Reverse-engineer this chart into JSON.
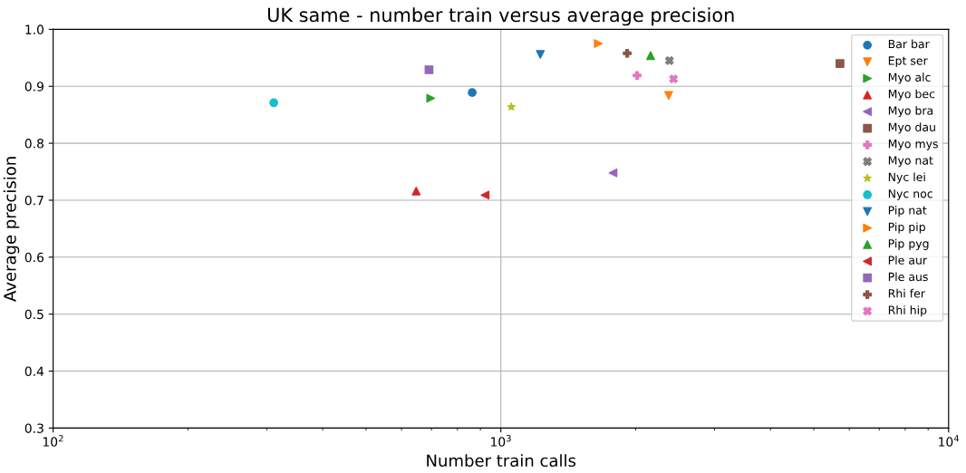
{
  "chart_data": {
    "type": "scatter",
    "title": "UK same - number train versus average precision",
    "xlabel": "Number train calls",
    "ylabel": "Average precision",
    "log": "x",
    "xlim": [
      100,
      10000
    ],
    "xticks": [
      {
        "value": 100,
        "label": "10$^{2}$"
      },
      {
        "value": 1000,
        "label": "10$^{3}$"
      },
      {
        "value": 10000,
        "label": "10$^{4}$"
      }
    ],
    "ylim": [
      0.3,
      1.0
    ],
    "yticks": [
      {
        "value": 0.3,
        "label": "0.3"
      },
      {
        "value": 0.4,
        "label": "0.4"
      },
      {
        "value": 0.5,
        "label": "0.5"
      },
      {
        "value": 0.6,
        "label": "0.6"
      },
      {
        "value": 0.7,
        "label": "0.7"
      },
      {
        "value": 0.8,
        "label": "0.8"
      },
      {
        "value": 0.9,
        "label": "0.9"
      },
      {
        "value": 1.0,
        "label": "1.0"
      }
    ],
    "grid": true,
    "legend": "top right",
    "series": [
      {
        "name": "Bar bar",
        "color": "#1f77b4",
        "marker": "circle",
        "x": [
          863
        ],
        "values": [
          0.889
        ]
      },
      {
        "name": "Ept ser",
        "color": "#ff7f0e",
        "marker": "triangle_down",
        "x": [
          2370
        ],
        "values": [
          0.884
        ]
      },
      {
        "name": "Myo alc",
        "color": "#2ca02c",
        "marker": "triangle_right",
        "x": [
          697
        ],
        "values": [
          0.879
        ]
      },
      {
        "name": "Myo bec",
        "color": "#d62728",
        "marker": "triangle",
        "x": [
          647
        ],
        "values": [
          0.716
        ]
      },
      {
        "name": "Myo bra",
        "color": "#9467bd",
        "marker": "triangle_left",
        "x": [
          1780
        ],
        "values": [
          0.748
        ]
      },
      {
        "name": "Myo dau",
        "color": "#8c564b",
        "marker": "square",
        "x": [
          5720
        ],
        "values": [
          0.94
        ]
      },
      {
        "name": "Myo mys",
        "color": "#e377c2",
        "marker": "plus",
        "x": [
          2015
        ],
        "values": [
          0.919
        ]
      },
      {
        "name": "Myo nat",
        "color": "#7f7f7f",
        "marker": "cross",
        "x": [
          2380
        ],
        "values": [
          0.945
        ]
      },
      {
        "name": "Nyc lei",
        "color": "#bcbd22",
        "marker": "star",
        "x": [
          1055
        ],
        "values": [
          0.864
        ]
      },
      {
        "name": "Nyc noc",
        "color": "#17becf",
        "marker": "circle",
        "x": [
          311
        ],
        "values": [
          0.871
        ]
      },
      {
        "name": "Pip nat",
        "color": "#1f77b4",
        "marker": "triangle_down",
        "x": [
          1225
        ],
        "values": [
          0.956
        ]
      },
      {
        "name": "Pip pip",
        "color": "#ff7f0e",
        "marker": "triangle_right",
        "x": [
          1650
        ],
        "values": [
          0.975
        ]
      },
      {
        "name": "Pip pyg",
        "color": "#2ca02c",
        "marker": "triangle",
        "x": [
          2160
        ],
        "values": [
          0.954
        ]
      },
      {
        "name": "Ple aur",
        "color": "#d62728",
        "marker": "triangle_left",
        "x": [
          922
        ],
        "values": [
          0.709
        ]
      },
      {
        "name": "Ple aus",
        "color": "#9467bd",
        "marker": "square",
        "x": [
          691
        ],
        "values": [
          0.929
        ]
      },
      {
        "name": "Rhi fer",
        "color": "#8c564b",
        "marker": "plus",
        "x": [
          1915
        ],
        "values": [
          0.958
        ]
      },
      {
        "name": "Rhi hip",
        "color": "#e377c2",
        "marker": "cross",
        "x": [
          2430
        ],
        "values": [
          0.913
        ]
      }
    ]
  }
}
